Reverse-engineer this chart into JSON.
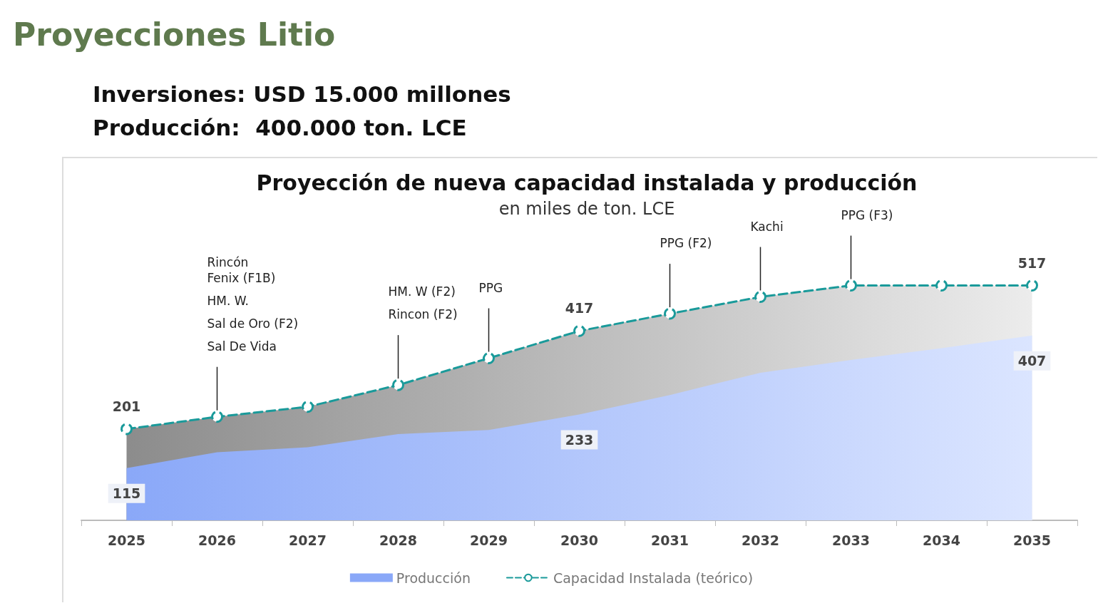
{
  "chart_data": {
    "type": "area",
    "title": "Proyección de nueva capacidad instalada y producción",
    "subtitle": "en miles de ton. LCE",
    "categories": [
      "2025",
      "2026",
      "2027",
      "2028",
      "2029",
      "2030",
      "2031",
      "2032",
      "2033",
      "2034",
      "2035"
    ],
    "series": [
      {
        "name": "Producción",
        "color": "#8aa8f8",
        "values": [
          115,
          150,
          161,
          190,
          199,
          233,
          276,
          325,
          353,
          379,
          407
        ],
        "value_labels": [
          "115",
          null,
          null,
          null,
          null,
          "233",
          null,
          null,
          null,
          null,
          "407"
        ]
      },
      {
        "name": "Capacidad Instalada (teórico)",
        "color": "#1a9a9a",
        "line_style": "dashed",
        "marker": "circle",
        "values": [
          201,
          228,
          250,
          298,
          357,
          417,
          455,
          492,
          517,
          517,
          517
        ],
        "value_labels": [
          "201",
          null,
          null,
          null,
          null,
          "417",
          null,
          null,
          null,
          null,
          "517"
        ]
      }
    ],
    "annotations": [
      "Proyecciones Litio",
      "Inversiones: USD 15.000 millones",
      "Producción:  400.000 ton. LCE",
      "Rincón\nFenix (F1B)",
      "HM. W.",
      "Sal de Oro (F2)",
      "Sal De Vida",
      "HM. W (F2)",
      "Rincon (F2)",
      "PPG",
      "PPG (F2)",
      "Kachi",
      "PPG (F3)"
    ],
    "legend": "bottom",
    "grid": false
  }
}
